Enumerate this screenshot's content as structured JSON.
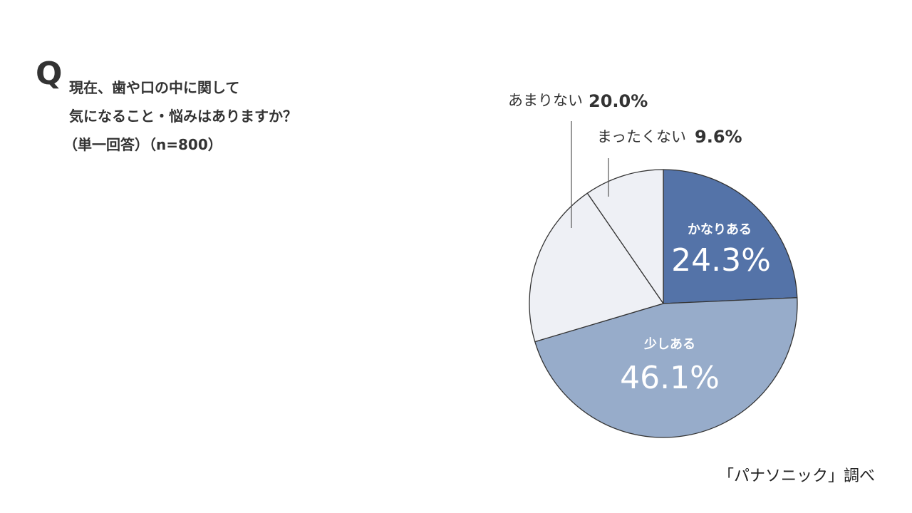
{
  "question": {
    "mark": "Q",
    "line1": "現在、歯や口の中に関して",
    "line2": "気になること・悩みはありますか？",
    "line3": "（単一回答）（n=800）"
  },
  "source": "「パナソニック」調べ",
  "colors": {
    "kanari": "#5473a8",
    "sukoshi": "#97acca",
    "amari": "#eef0f5",
    "mattaku": "#eef0f5",
    "stroke": "#333333",
    "label_light": "#ffffff"
  },
  "chart_data": {
    "type": "pie",
    "start": "12 o'clock",
    "direction": "clockwise",
    "slices": [
      {
        "name": "かなりある",
        "value": 24.3,
        "display": "24.3%"
      },
      {
        "name": "少しある",
        "value": 46.1,
        "display": "46.1%"
      },
      {
        "name": "あまりない",
        "value": 20.0,
        "display": "20.0%"
      },
      {
        "name": "まったくない",
        "value": 9.6,
        "display": "9.6%"
      }
    ]
  }
}
